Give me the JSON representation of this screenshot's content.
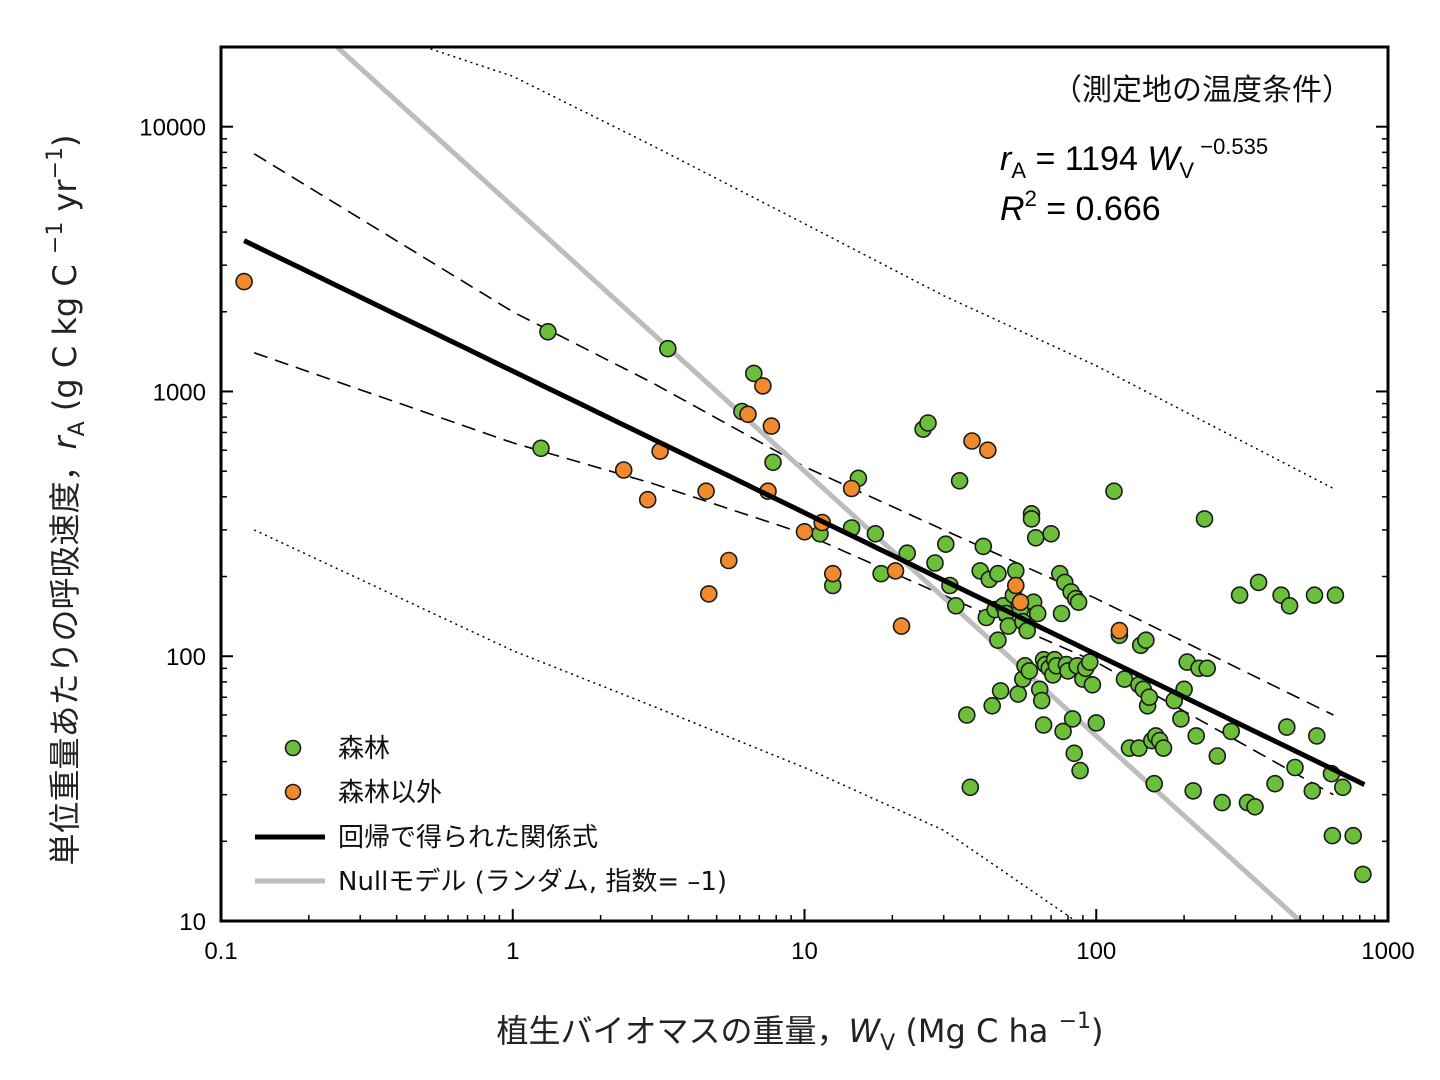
{
  "chart_data": {
    "type": "scatter",
    "xscale": "log",
    "yscale": "log",
    "xlim": [
      0.1,
      1000
    ],
    "ylim": [
      10,
      20000
    ],
    "x_ticks": [
      "0.1",
      "1",
      "10",
      "100",
      "1000"
    ],
    "y_ticks": [
      "10",
      "100",
      "1000",
      "10000"
    ],
    "xlabel": {
      "main": "植生バイオマスの重量，",
      "var": "W",
      "sub": "V",
      "unit_open": " (Mg C ha ",
      "exp": "−1",
      "unit_close": ")"
    },
    "ylabel": {
      "main": "単位重量あたりの呼吸速度，",
      "var": "r",
      "sub": "A",
      "unit_open": " (g C kg C ",
      "exp1": "−1",
      "mid": " yr",
      "exp2": "−1",
      "unit_close": ")"
    },
    "condition_note": "（測定地の温度条件）",
    "equation": {
      "lhs_var": "r",
      "lhs_sub": "A",
      "eq": " = 1194 ",
      "rhs_var": "W",
      "rhs_sub": "V",
      "exp": " −0.535"
    },
    "r2": {
      "var": "R",
      "exp": "2",
      "rest": " = 0.666"
    },
    "legend": {
      "position": "bottom-left",
      "forest": "森林",
      "nonforest": "森林以外",
      "fit": "回帰で得られた関係式",
      "null": "Nullモデル (ランダム, 指数= –1)"
    },
    "colors": {
      "forest": "#6cbf3a",
      "nonforest": "#f08a2c",
      "fit": "#000000",
      "null": "#bdbdbd"
    },
    "fit_line": {
      "a": 1194,
      "b": -0.535,
      "x_range": [
        0.12,
        830
      ]
    },
    "null_line": {
      "a": 5000,
      "b": -1,
      "x_range": [
        0.2,
        560
      ]
    },
    "confidence_band": {
      "upper": [
        [
          0.13,
          7900
        ],
        [
          1.0,
          2000
        ],
        [
          3.0,
          1080
        ],
        [
          10,
          520
        ],
        [
          30,
          300
        ],
        [
          100,
          165
        ],
        [
          650,
          60
        ]
      ],
      "lower": [
        [
          0.13,
          1400
        ],
        [
          1.0,
          640
        ],
        [
          3.0,
          450
        ],
        [
          10,
          290
        ],
        [
          30,
          170
        ],
        [
          100,
          95
        ],
        [
          650,
          30
        ]
      ]
    },
    "prediction_band": {
      "upper": [
        [
          0.5,
          20000
        ],
        [
          1.0,
          15500
        ],
        [
          3.0,
          8500
        ],
        [
          10,
          4300
        ],
        [
          30,
          2300
        ],
        [
          100,
          1250
        ],
        [
          650,
          430
        ]
      ],
      "lower": [
        [
          0.13,
          300
        ],
        [
          1.0,
          105
        ],
        [
          3.0,
          65
        ],
        [
          10,
          38
        ],
        [
          30,
          22
        ],
        [
          85,
          10
        ]
      ]
    },
    "series": [
      {
        "name": "森林",
        "color": "#6cbf3a",
        "points": [
          [
            1.25,
            610
          ],
          [
            1.32,
            1680
          ],
          [
            3.4,
            1450
          ],
          [
            6.1,
            840
          ],
          [
            6.7,
            1170
          ],
          [
            7.8,
            540
          ],
          [
            11.3,
            290
          ],
          [
            12.5,
            185
          ],
          [
            14.5,
            305
          ],
          [
            15.3,
            470
          ],
          [
            17.5,
            290
          ],
          [
            18.3,
            205
          ],
          [
            22.5,
            245
          ],
          [
            25.5,
            720
          ],
          [
            26.5,
            760
          ],
          [
            28,
            225
          ],
          [
            30.5,
            265
          ],
          [
            31.5,
            185
          ],
          [
            33,
            155
          ],
          [
            34,
            460
          ],
          [
            36,
            60
          ],
          [
            37,
            32
          ],
          [
            40,
            210
          ],
          [
            41,
            260
          ],
          [
            42,
            140
          ],
          [
            43,
            195
          ],
          [
            44,
            65
          ],
          [
            45,
            150
          ],
          [
            46,
            115
          ],
          [
            46,
            205
          ],
          [
            47,
            74
          ],
          [
            48,
            155
          ],
          [
            49,
            145
          ],
          [
            50,
            130
          ],
          [
            52,
            170
          ],
          [
            53,
            210
          ],
          [
            54,
            72
          ],
          [
            55,
            150
          ],
          [
            56,
            135
          ],
          [
            56,
            82
          ],
          [
            57,
            92
          ],
          [
            58,
            125
          ],
          [
            59,
            88
          ],
          [
            60,
            345
          ],
          [
            60,
            330
          ],
          [
            61,
            160
          ],
          [
            62,
            280
          ],
          [
            63,
            145
          ],
          [
            64,
            75
          ],
          [
            65,
            68
          ],
          [
            66,
            55
          ],
          [
            66,
            97
          ],
          [
            67,
            93
          ],
          [
            69,
            90
          ],
          [
            70,
            290
          ],
          [
            71,
            85
          ],
          [
            72,
            97
          ],
          [
            73,
            92
          ],
          [
            75,
            205
          ],
          [
            76,
            145
          ],
          [
            77,
            52
          ],
          [
            78,
            190
          ],
          [
            79,
            93
          ],
          [
            80,
            88
          ],
          [
            82,
            175
          ],
          [
            83,
            58
          ],
          [
            84,
            43
          ],
          [
            85,
            165
          ],
          [
            86,
            92
          ],
          [
            87,
            160
          ],
          [
            88,
            37
          ],
          [
            90,
            82
          ],
          [
            92,
            90
          ],
          [
            95,
            95
          ],
          [
            97,
            78
          ],
          [
            100,
            56
          ],
          [
            115,
            420
          ],
          [
            120,
            120
          ],
          [
            125,
            82
          ],
          [
            130,
            45
          ],
          [
            140,
            45
          ],
          [
            140,
            78
          ],
          [
            142,
            110
          ],
          [
            145,
            75
          ],
          [
            148,
            115
          ],
          [
            150,
            65
          ],
          [
            152,
            70
          ],
          [
            155,
            48
          ],
          [
            158,
            33
          ],
          [
            160,
            50
          ],
          [
            165,
            48
          ],
          [
            170,
            45
          ],
          [
            185,
            68
          ],
          [
            195,
            58
          ],
          [
            200,
            75
          ],
          [
            205,
            95
          ],
          [
            215,
            31
          ],
          [
            220,
            50
          ],
          [
            225,
            90
          ],
          [
            235,
            330
          ],
          [
            240,
            90
          ],
          [
            260,
            42
          ],
          [
            270,
            28
          ],
          [
            290,
            52
          ],
          [
            310,
            170
          ],
          [
            330,
            28
          ],
          [
            350,
            27
          ],
          [
            360,
            190
          ],
          [
            410,
            33
          ],
          [
            430,
            170
          ],
          [
            450,
            54
          ],
          [
            460,
            155
          ],
          [
            480,
            38
          ],
          [
            550,
            31
          ],
          [
            560,
            170
          ],
          [
            570,
            50
          ],
          [
            640,
            36
          ],
          [
            645,
            21
          ],
          [
            660,
            170
          ],
          [
            700,
            32
          ],
          [
            760,
            21
          ],
          [
            820,
            15
          ]
        ]
      },
      {
        "name": "森林以外",
        "color": "#f08a2c",
        "points": [
          [
            0.12,
            2600
          ],
          [
            2.4,
            505
          ],
          [
            2.9,
            390
          ],
          [
            3.2,
            595
          ],
          [
            4.6,
            420
          ],
          [
            4.7,
            172
          ],
          [
            5.5,
            230
          ],
          [
            6.4,
            820
          ],
          [
            7.2,
            1050
          ],
          [
            7.5,
            420
          ],
          [
            7.7,
            740
          ],
          [
            10,
            295
          ],
          [
            11.5,
            320
          ],
          [
            12.5,
            205
          ],
          [
            14.5,
            430
          ],
          [
            20.5,
            210
          ],
          [
            21.5,
            130
          ],
          [
            37.5,
            650
          ],
          [
            42.5,
            600
          ],
          [
            53,
            185
          ],
          [
            55,
            160
          ],
          [
            120,
            125
          ]
        ]
      }
    ]
  }
}
